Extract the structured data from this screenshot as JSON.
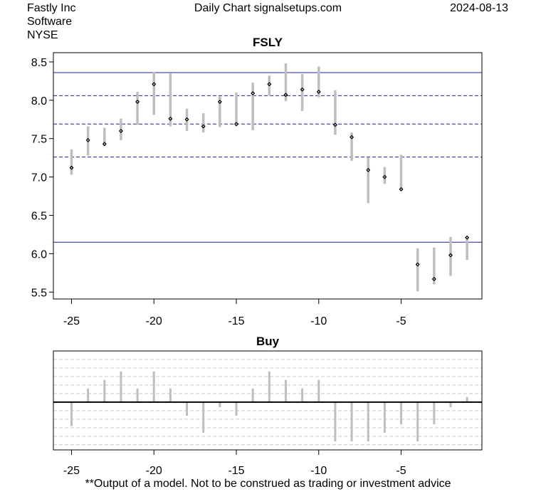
{
  "header": {
    "company": "Fastly Inc",
    "sector": "Software",
    "exchange": "NYSE",
    "source": "Daily Chart signalsetups.com",
    "date": "2024-08-13"
  },
  "footer": "**Output of a model. Not to be construed as trading or investment advice",
  "chart_data": [
    {
      "type": "line",
      "title": "FSLY",
      "xlabel": "",
      "ylabel": "",
      "x_ticks": [
        -25,
        -20,
        -15,
        -10,
        -5
      ],
      "y_ticks": [
        "5.5",
        "6.0",
        "6.5",
        "7.0",
        "7.5",
        "8.0",
        "8.5"
      ],
      "xlim": [
        -26.1,
        -0.1
      ],
      "ylim": [
        5.41,
        8.62
      ],
      "range_color": "#bebebe",
      "line_color": "#1f1fa8",
      "solid_lines": [
        8.36,
        6.15
      ],
      "dashed_lines": [
        8.06,
        7.69,
        7.26
      ],
      "bars": [
        {
          "x": -25,
          "low": 7.03,
          "high": 7.36,
          "close": 7.12
        },
        {
          "x": -24,
          "low": 7.28,
          "high": 7.66,
          "close": 7.48
        },
        {
          "x": -23,
          "low": 7.4,
          "high": 7.64,
          "close": 7.43
        },
        {
          "x": -22,
          "low": 7.48,
          "high": 7.76,
          "close": 7.6
        },
        {
          "x": -21,
          "low": 7.68,
          "high": 8.11,
          "close": 7.98
        },
        {
          "x": -20,
          "low": 7.81,
          "high": 8.37,
          "close": 8.21
        },
        {
          "x": -19,
          "low": 7.66,
          "high": 8.35,
          "close": 7.76
        },
        {
          "x": -18,
          "low": 7.6,
          "high": 7.89,
          "close": 7.75
        },
        {
          "x": -17,
          "low": 7.58,
          "high": 7.83,
          "close": 7.66
        },
        {
          "x": -16,
          "low": 7.65,
          "high": 8.05,
          "close": 7.98
        },
        {
          "x": -15,
          "low": 7.66,
          "high": 8.1,
          "close": 7.69
        },
        {
          "x": -14,
          "low": 7.61,
          "high": 8.23,
          "close": 8.09
        },
        {
          "x": -13,
          "low": 8.06,
          "high": 8.32,
          "close": 8.21
        },
        {
          "x": -12,
          "low": 7.99,
          "high": 8.48,
          "close": 8.07
        },
        {
          "x": -11,
          "low": 7.86,
          "high": 8.34,
          "close": 8.14
        },
        {
          "x": -10,
          "low": 8.04,
          "high": 8.44,
          "close": 8.11
        },
        {
          "x": -9,
          "low": 7.55,
          "high": 8.13,
          "close": 7.68
        },
        {
          "x": -8,
          "low": 7.21,
          "high": 7.58,
          "close": 7.52
        },
        {
          "x": -7,
          "low": 6.66,
          "high": 7.25,
          "close": 7.09
        },
        {
          "x": -6,
          "low": 6.91,
          "high": 7.13,
          "close": 7.0
        },
        {
          "x": -5,
          "low": 6.82,
          "high": 7.29,
          "close": 6.84
        },
        {
          "x": -4,
          "low": 5.51,
          "high": 6.07,
          "close": 5.86
        },
        {
          "x": -3,
          "low": 5.6,
          "high": 6.08,
          "close": 5.67
        },
        {
          "x": -2,
          "low": 5.71,
          "high": 6.22,
          "close": 5.98
        },
        {
          "x": -1,
          "low": 5.92,
          "high": 6.22,
          "close": 6.21
        }
      ]
    },
    {
      "type": "bar",
      "title": "Buy",
      "x_ticks": [
        -25,
        -20,
        -15,
        -10,
        -5
      ],
      "xlim": [
        -26.1,
        -0.1
      ],
      "ylim": [
        -5.6,
        6.0
      ],
      "bar_color": "#bebebe",
      "x": [
        -25,
        -24,
        -23,
        -22,
        -21,
        -20,
        -19,
        -18,
        -17,
        -16,
        -15,
        -14,
        -13,
        -12,
        -11,
        -10,
        -9,
        -8,
        -7,
        -6,
        -5,
        -4,
        -3,
        -2,
        -1
      ],
      "values": [
        -2.8,
        1.6,
        2.6,
        3.6,
        1.6,
        3.6,
        1.6,
        -1.6,
        -3.6,
        -0.6,
        -1.6,
        1.6,
        3.6,
        2.6,
        1.6,
        2.6,
        -4.6,
        -4.6,
        -4.6,
        -3.6,
        -2.6,
        -4.6,
        -2.6,
        -0.6,
        0.6
      ]
    }
  ]
}
